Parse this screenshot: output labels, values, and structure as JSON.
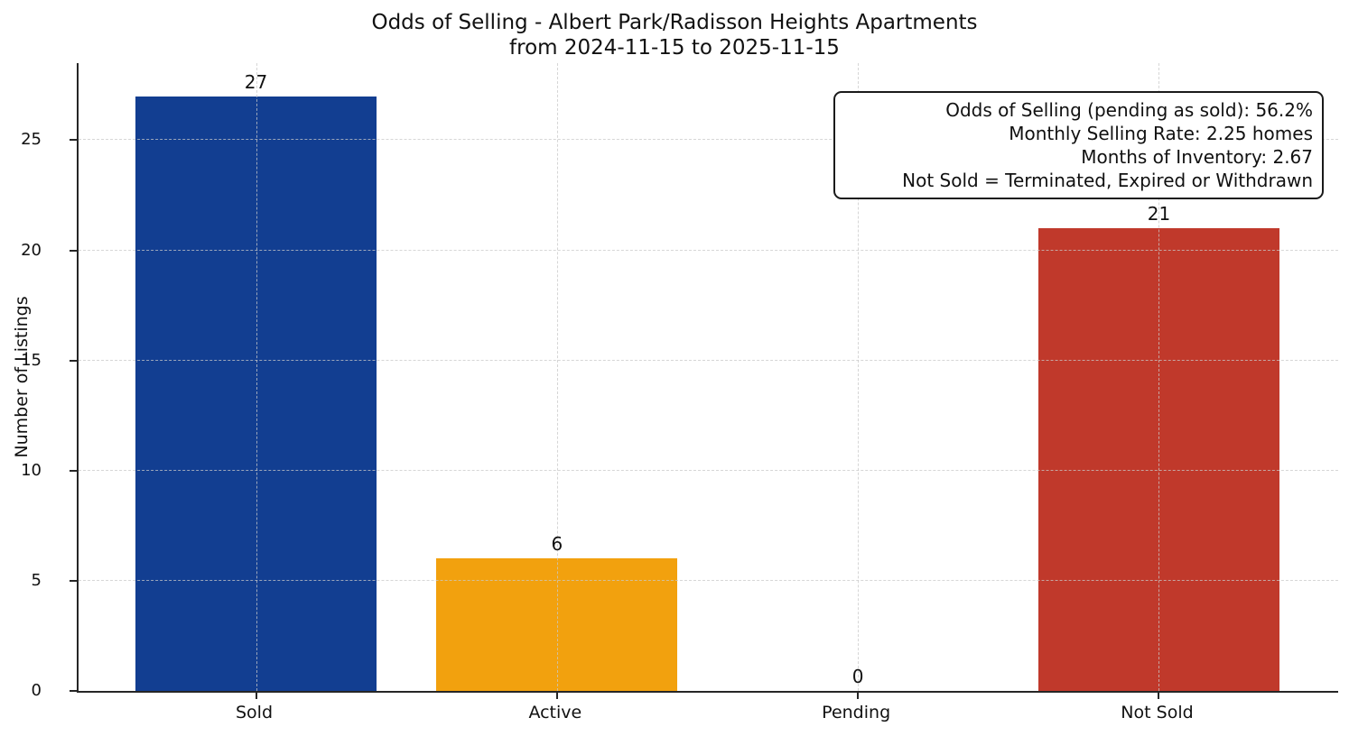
{
  "title": {
    "line1": "Odds of Selling - Albert Park/Radisson Heights Apartments",
    "line2": "from 2024-11-15 to 2025-11-15"
  },
  "annotation": {
    "lines": [
      "Odds of Selling (pending as sold): 56.2%",
      "Monthly Selling Rate: 2.25 homes",
      "Months of Inventory: 2.67",
      "Not Sold = Terminated, Expired or Withdrawn"
    ]
  },
  "chart_data": {
    "type": "bar",
    "title": "Odds of Selling - Albert Park/Radisson Heights Apartments from 2024-11-15 to 2025-11-15",
    "categories": [
      "Sold",
      "Active",
      "Pending",
      "Not Sold"
    ],
    "values": [
      27,
      6,
      0,
      21
    ],
    "value_labels": [
      "27",
      "6",
      "0",
      "21"
    ],
    "bar_colors": [
      "#123e91",
      "#f2a10e",
      null,
      "#c0392b"
    ],
    "xlabel": "",
    "ylabel": "Number of Listings",
    "yticks": [
      0,
      5,
      10,
      15,
      20,
      25
    ],
    "ylim": [
      0,
      28.5
    ],
    "grid": true,
    "grid_style": "dashed",
    "legend": "none",
    "annotation_box_position": "top-right",
    "spine_color": "#262626",
    "background_color": "#ffffff"
  }
}
